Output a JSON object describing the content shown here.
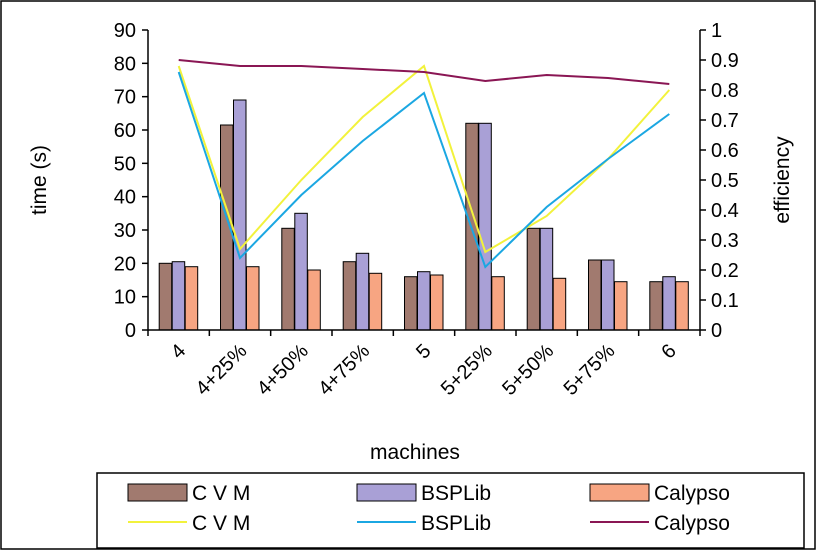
{
  "chart_data": {
    "type": "bar",
    "xlabel": "machines",
    "ylabel": "time (s)",
    "y2label": "efficiency",
    "categories": [
      "4",
      "4+25%",
      "4+50%",
      "4+75%",
      "5",
      "5+25%",
      "5+50%",
      "5+75%",
      "6"
    ],
    "ylim": [
      0,
      90
    ],
    "yticks": [
      0,
      10,
      20,
      30,
      40,
      50,
      60,
      70,
      80,
      90
    ],
    "y2lim": [
      0,
      1
    ],
    "y2ticks": [
      "0",
      "0.1",
      "0.2",
      "0.3",
      "0.4",
      "0.5",
      "0.6",
      "0.7",
      "0.8",
      "0.9",
      "1"
    ],
    "grid": false,
    "legend_position": "bottom",
    "bar_series": [
      {
        "name": "C V M",
        "color": "#a17a6f",
        "values": [
          20,
          61.5,
          30.5,
          20.5,
          16,
          62,
          30.5,
          21,
          14.5
        ]
      },
      {
        "name": "BSPLib",
        "color": "#a9a0d6",
        "values": [
          20.5,
          69,
          35,
          23,
          17.5,
          62,
          30.5,
          21,
          16
        ]
      },
      {
        "name": "Calypso",
        "color": "#f7a582",
        "values": [
          19,
          19,
          18,
          17,
          16.5,
          16,
          15.5,
          14.5,
          14.5
        ]
      }
    ],
    "line_series": [
      {
        "name": "C V M",
        "color": "#f2f23c",
        "values": [
          0.88,
          0.27,
          0.5,
          0.71,
          0.88,
          0.26,
          0.38,
          0.57,
          0.8
        ]
      },
      {
        "name": "BSPLib",
        "color": "#1ba7e2",
        "values": [
          0.86,
          0.24,
          0.45,
          0.63,
          0.79,
          0.21,
          0.41,
          0.57,
          0.72
        ]
      },
      {
        "name": "Calypso",
        "color": "#8a1654",
        "values": [
          0.9,
          0.88,
          0.88,
          0.87,
          0.86,
          0.83,
          0.85,
          0.84,
          0.82
        ]
      }
    ]
  },
  "legend": {
    "items": [
      {
        "label": "C V M",
        "kind": "bar",
        "color": "#a17a6f"
      },
      {
        "label": "BSPLib",
        "kind": "bar",
        "color": "#a9a0d6"
      },
      {
        "label": "Calypso",
        "kind": "bar",
        "color": "#f7a582"
      },
      {
        "label": "C V M",
        "kind": "line",
        "color": "#f2f23c"
      },
      {
        "label": "BSPLib",
        "kind": "line",
        "color": "#1ba7e2"
      },
      {
        "label": "Calypso",
        "kind": "line",
        "color": "#8a1654"
      }
    ]
  }
}
